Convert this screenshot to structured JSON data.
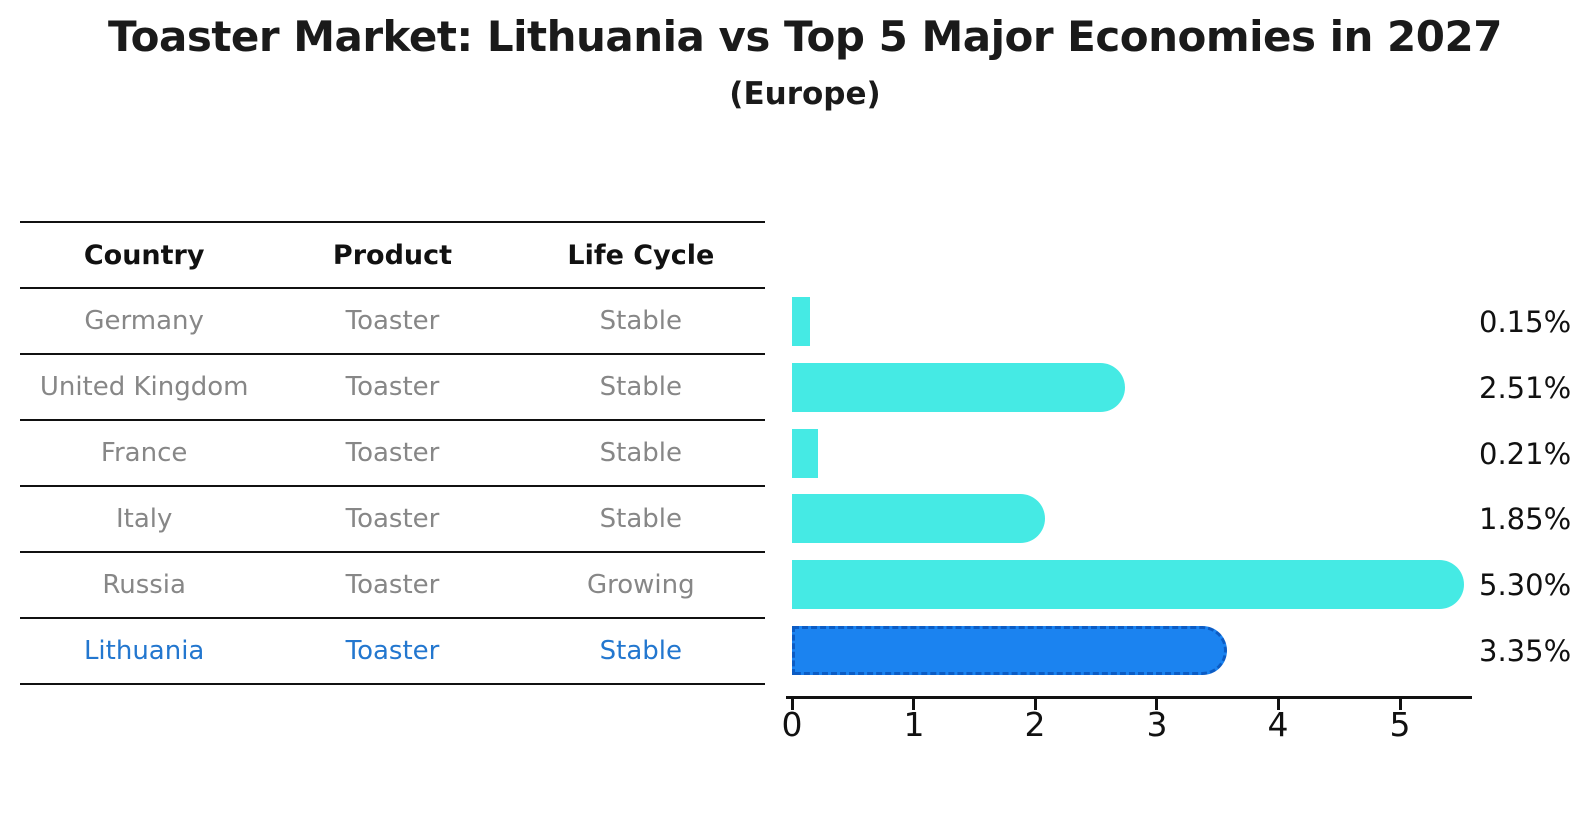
{
  "chart": {
    "title": "Toaster Market: Lithuania vs Top 5 Major Economies in 2027",
    "subtitle": "(Europe)"
  },
  "table": {
    "headers": [
      "Country",
      "Product",
      "Life Cycle"
    ],
    "rows": [
      {
        "country": "Germany",
        "product": "Toaster",
        "life_cycle": "Stable",
        "highlight": false
      },
      {
        "country": "United Kingdom",
        "product": "Toaster",
        "life_cycle": "Stable",
        "highlight": false
      },
      {
        "country": "France",
        "product": "Toaster",
        "life_cycle": "Stable",
        "highlight": false
      },
      {
        "country": "Italy",
        "product": "Toaster",
        "life_cycle": "Stable",
        "highlight": false
      },
      {
        "country": "Russia",
        "product": "Toaster",
        "life_cycle": "Growing",
        "highlight": false
      },
      {
        "country": "Lithuania",
        "product": "Toaster",
        "life_cycle": "Stable",
        "highlight": true
      }
    ]
  },
  "chart_data": {
    "type": "bar",
    "orientation": "horizontal",
    "title": "Toaster Market: Lithuania vs Top 5 Major Economies in 2027",
    "subtitle": "(Europe)",
    "categories": [
      "Germany",
      "United Kingdom",
      "France",
      "Italy",
      "Russia",
      "Lithuania"
    ],
    "values": [
      0.15,
      2.51,
      0.21,
      1.85,
      5.3,
      3.35
    ],
    "value_labels": [
      "0.15%",
      "2.51%",
      "0.21%",
      "1.85%",
      "5.30%",
      "3.35%"
    ],
    "x_ticks": [
      "0",
      "1",
      "2",
      "3",
      "4",
      "5"
    ],
    "xlim": [
      0,
      5.6
    ],
    "grid": false,
    "legend": false,
    "highlight_index": 5,
    "bar_color": "#45EAE4",
    "highlight_bar_color": "#1B83F0",
    "highlight_border_color": "#0c5cc4"
  },
  "colors": {
    "bar": "#45EAE4",
    "highlight_bar": "#1B83F0",
    "highlight_border": "#0c5cc4",
    "row_text": "#878787",
    "highlight_text": "#2377cf",
    "header_text": "#111111",
    "axis": "#111111",
    "background": "#ffffff"
  }
}
